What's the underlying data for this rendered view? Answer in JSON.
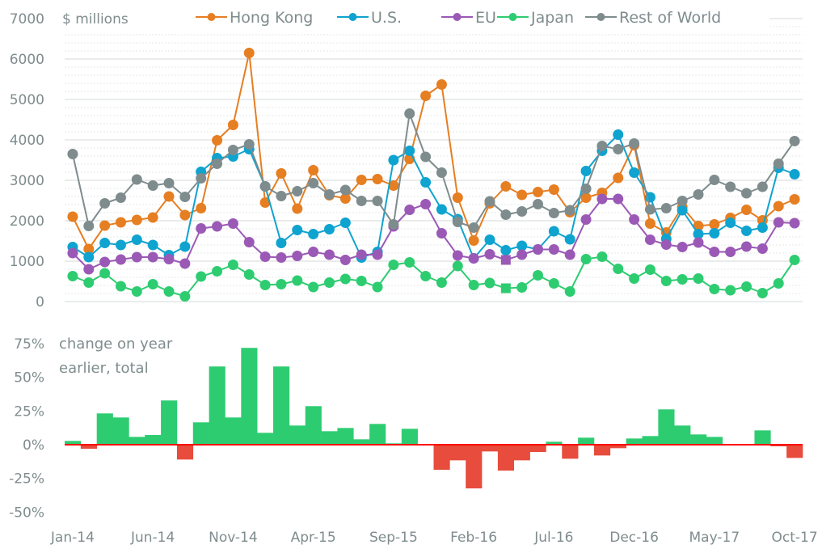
{
  "chart_data": [
    {
      "type": "line",
      "title": "",
      "ylabel": "$ millions",
      "xlabel": "",
      "ylim": [
        0,
        7000
      ],
      "yticks": [
        "0",
        "1000",
        "2000",
        "3000",
        "4000",
        "5000",
        "6000",
        "7000"
      ],
      "yticks_values": [
        0,
        1000,
        2000,
        3000,
        4000,
        5000,
        6000,
        7000
      ],
      "grid": true,
      "legend_position": "top",
      "x": [
        "Jan-14",
        "Feb-14",
        "Mar-14",
        "Apr-14",
        "May-14",
        "Jun-14",
        "Jul-14",
        "Aug-14",
        "Sep-14",
        "Oct-14",
        "Nov-14",
        "Dec-14",
        "Jan-15",
        "Feb-15",
        "Mar-15",
        "Apr-15",
        "May-15",
        "Jun-15",
        "Jul-15",
        "Aug-15",
        "Sep-15",
        "Oct-15",
        "Nov-15",
        "Dec-15",
        "Jan-16",
        "Feb-16",
        "Mar-16",
        "Apr-16",
        "May-16",
        "Jun-16",
        "Jul-16",
        "Aug-16",
        "Sep-16",
        "Oct-16",
        "Nov-16",
        "Dec-16",
        "Jan-17",
        "Feb-17",
        "Mar-17",
        "Apr-17",
        "May-17",
        "Jun-17",
        "Jul-17",
        "Aug-17",
        "Sep-17",
        "Oct-17"
      ],
      "series": [
        {
          "name": "Hong Kong",
          "color": "#e67e22",
          "values": [
            2100,
            1300,
            1880,
            1960,
            2020,
            2080,
            2600,
            2140,
            2310,
            3990,
            4370,
            6150,
            2450,
            3170,
            2300,
            3250,
            2630,
            2550,
            3010,
            3030,
            2870,
            3530,
            5090,
            5370,
            2570,
            1510,
            2430,
            2850,
            2640,
            2710,
            2770,
            2210,
            2570,
            2690,
            3060,
            3870,
            1930,
            1710,
            2340,
            1870,
            1910,
            2070,
            2270,
            2010,
            2360,
            2530
          ]
        },
        {
          "name": "U.S.",
          "color": "#0fa3cf",
          "values": [
            1350,
            1100,
            1450,
            1400,
            1530,
            1400,
            1150,
            1360,
            3210,
            3550,
            3590,
            3770,
            2850,
            1450,
            1770,
            1670,
            1790,
            1950,
            1090,
            1230,
            3500,
            3730,
            2950,
            2280,
            2040,
            1070,
            1530,
            1270,
            1380,
            1290,
            1740,
            1540,
            3230,
            3730,
            4130,
            3190,
            2580,
            1550,
            2260,
            1670,
            1690,
            1950,
            1750,
            1830,
            3310,
            3150
          ]
        },
        {
          "name": "EU",
          "color": "#9b59b6",
          "values": [
            1200,
            800,
            980,
            1040,
            1100,
            1100,
            1050,
            940,
            1810,
            1860,
            1930,
            1470,
            1110,
            1090,
            1130,
            1230,
            1160,
            1030,
            1160,
            1160,
            1860,
            2270,
            2410,
            1690,
            1140,
            1070,
            1170,
            1030,
            1160,
            1290,
            1290,
            1160,
            2030,
            2540,
            2540,
            2030,
            1530,
            1410,
            1350,
            1460,
            1230,
            1230,
            1360,
            1310,
            1960,
            1940
          ],
          "square_marker_at": [
            "Apr-16"
          ]
        },
        {
          "name": "Japan",
          "color": "#2ecc71",
          "values": [
            630,
            470,
            700,
            380,
            250,
            430,
            250,
            130,
            620,
            750,
            910,
            670,
            410,
            430,
            520,
            360,
            470,
            560,
            510,
            360,
            910,
            970,
            630,
            470,
            880,
            410,
            460,
            330,
            350,
            650,
            450,
            250,
            1050,
            1110,
            810,
            570,
            790,
            510,
            550,
            570,
            310,
            280,
            370,
            210,
            450,
            1030
          ],
          "square_marker_at": [
            "Apr-16"
          ]
        },
        {
          "name": "Rest of World",
          "color": "#7f8c8d",
          "values": [
            3650,
            1870,
            2430,
            2570,
            3020,
            2870,
            2930,
            2590,
            3050,
            3410,
            3750,
            3890,
            2850,
            2610,
            2730,
            2930,
            2650,
            2760,
            2490,
            2490,
            1910,
            4650,
            3580,
            3190,
            1970,
            1830,
            2480,
            2150,
            2230,
            2410,
            2190,
            2260,
            2790,
            3850,
            3770,
            3910,
            2280,
            2310,
            2490,
            2650,
            3010,
            2840,
            2680,
            2840,
            3410,
            3970
          ]
        }
      ]
    },
    {
      "type": "bar",
      "title": "",
      "annotation_line1": "change on year",
      "annotation_line2": "earlier, total",
      "ylim": [
        -50,
        75
      ],
      "yticks": [
        "75%",
        "50%",
        "25%",
        "0%",
        "-25%",
        "-50%"
      ],
      "yticks_values": [
        75,
        50,
        25,
        0,
        -25,
        -50
      ],
      "positive_color": "#2ecc71",
      "negative_color": "#e74c3c",
      "zero_line_color": "#ff0000",
      "xticks": [
        "Jan-14",
        "Jun-14",
        "Nov-14",
        "Apr-15",
        "Sep-15",
        "Feb-16",
        "Jul-16",
        "Dec-16",
        "May-17",
        "Oct-17"
      ],
      "xticks_index": [
        0,
        5,
        10,
        15,
        20,
        25,
        30,
        35,
        40,
        45
      ],
      "values": [
        2.8,
        -3,
        23.2,
        20.2,
        5.8,
        7.2,
        32.8,
        -11,
        16.6,
        58,
        20.2,
        71.8,
        8.8,
        58,
        14.2,
        28.6,
        10,
        12.4,
        4,
        15.4,
        1,
        11.8,
        0,
        -18.6,
        -11.6,
        -32.4,
        -5,
        -19.2,
        -11.6,
        -5.4,
        2.2,
        -10.4,
        5.2,
        -8,
        -2.6,
        4.6,
        6.4,
        26.2,
        14.2,
        7.6,
        5.8,
        0,
        0,
        10.6,
        -1.2,
        -9.8
      ]
    }
  ]
}
